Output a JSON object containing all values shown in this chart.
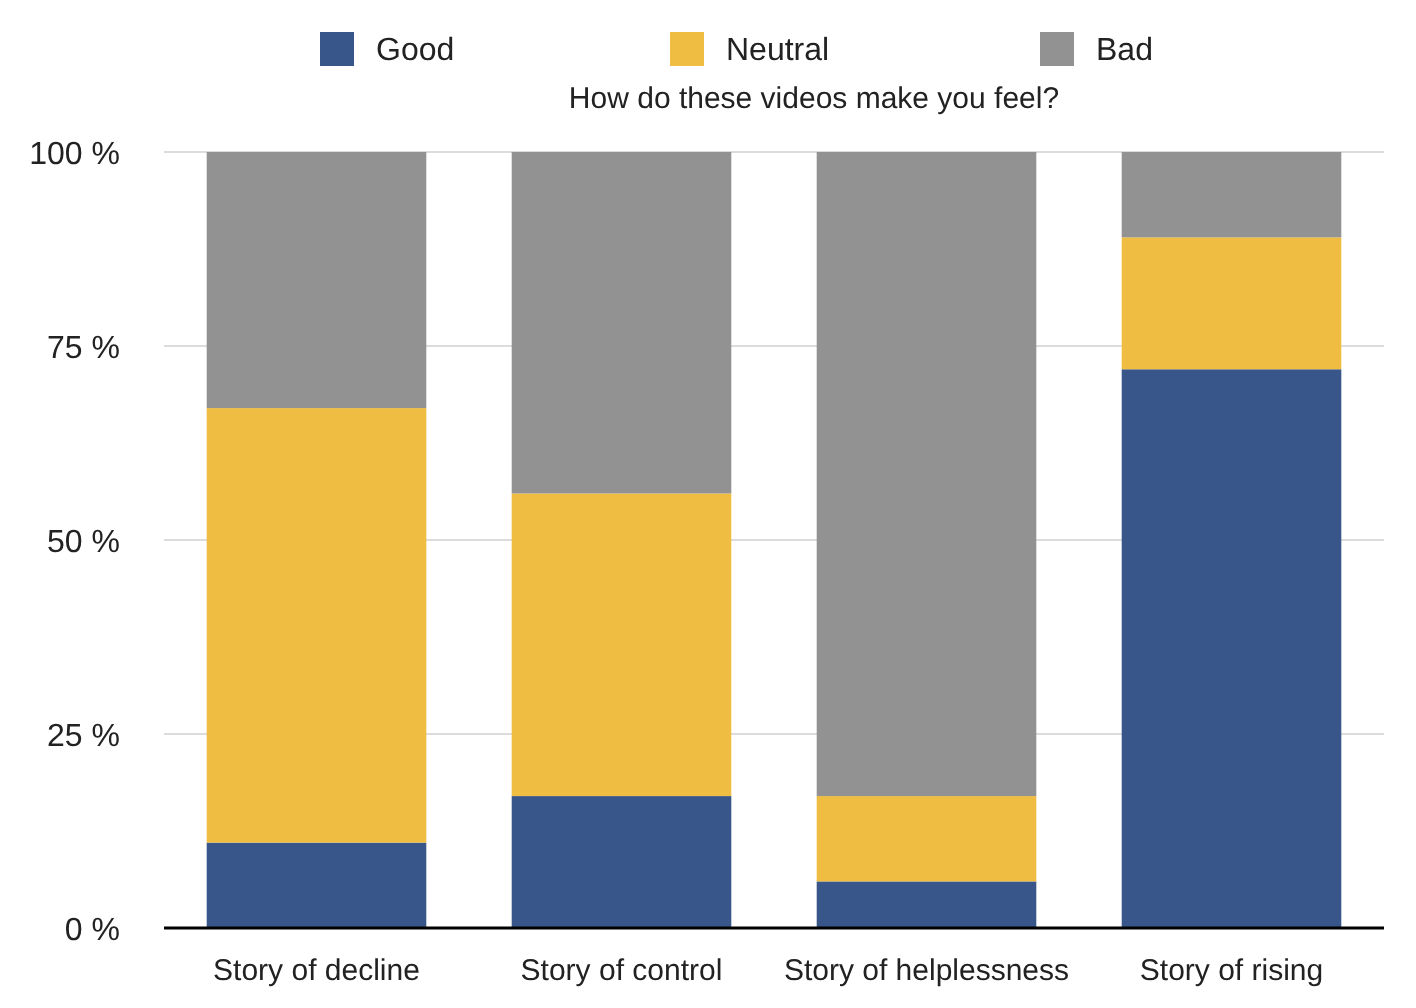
{
  "chart_data": {
    "type": "bar",
    "title": "How do these videos make you feel?",
    "stacked": true,
    "categories": [
      "Story of decline",
      "Story of control",
      "Story of helplessness",
      "Story of rising"
    ],
    "series": [
      {
        "name": "Good",
        "color": "#385689",
        "values": [
          11,
          17,
          6,
          72
        ]
      },
      {
        "name": "Neutral",
        "color": "#eebd42",
        "values": [
          56,
          39,
          11,
          17
        ]
      },
      {
        "name": "Bad",
        "color": "#929292",
        "values": [
          33,
          44,
          83,
          11
        ]
      }
    ],
    "ylim": [
      0,
      100
    ],
    "yticks": [
      {
        "value": 0,
        "label": "0 %"
      },
      {
        "value": 25,
        "label": "25 %"
      },
      {
        "value": 50,
        "label": "50 %"
      },
      {
        "value": 75,
        "label": "75 %"
      },
      {
        "value": 100,
        "label": "100 %"
      }
    ],
    "grid": "y",
    "legend": "top"
  }
}
